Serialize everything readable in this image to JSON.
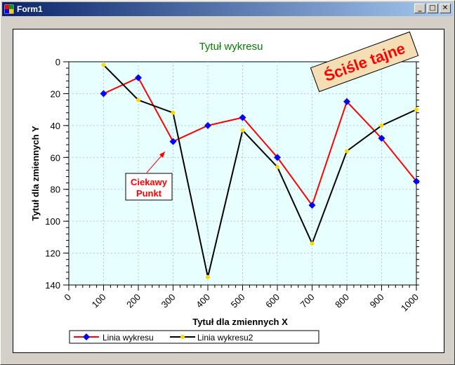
{
  "window": {
    "title": "Form1",
    "buttons": {
      "minimize": "_",
      "maximize": "□",
      "close": "✕"
    }
  },
  "chart_data": {
    "type": "line",
    "title": "Tytuł wykresu",
    "xlabel": "Tytuł dla zmiennych X",
    "ylabel": "Tytuł dla zmiennych Y",
    "xlim": [
      0,
      1000
    ],
    "ylim": [
      0,
      140
    ],
    "y_inverted": true,
    "x_ticks": [
      "0",
      "100",
      "200",
      "300",
      "400",
      "500",
      "600",
      "700",
      "800",
      "900",
      "1000"
    ],
    "y_ticks": [
      "0",
      "20",
      "40",
      "60",
      "80",
      "100",
      "120",
      "140"
    ],
    "grid": true,
    "legend": "bottom-left",
    "series": [
      {
        "name": "Linia wykresu",
        "color": "#ff0000",
        "marker": "diamond",
        "marker_color": "#0000ff",
        "x": [
          100,
          200,
          300,
          400,
          500,
          600,
          700,
          800,
          900,
          1000
        ],
        "y": [
          20,
          10,
          50,
          40,
          35,
          60,
          90,
          25,
          48,
          75
        ]
      },
      {
        "name": "Linia wykresu2",
        "color": "#000000",
        "marker": "circle",
        "marker_color": "#ffd700",
        "x": [
          100,
          200,
          300,
          400,
          500,
          600,
          700,
          800,
          900,
          1000
        ],
        "y": [
          2,
          24,
          32,
          135,
          43,
          66,
          114,
          56,
          40,
          30
        ]
      }
    ],
    "annotations": [
      {
        "text_line1": "Ciekawy",
        "text_line2": "Punkt",
        "color": "#ff0000",
        "points_to": [
          300,
          55
        ]
      },
      {
        "text": "Ściśle tajne",
        "color": "#ff0000",
        "background": "#f5deb3"
      }
    ],
    "plot_background": "#e8ffff",
    "title_color": "#008000"
  }
}
